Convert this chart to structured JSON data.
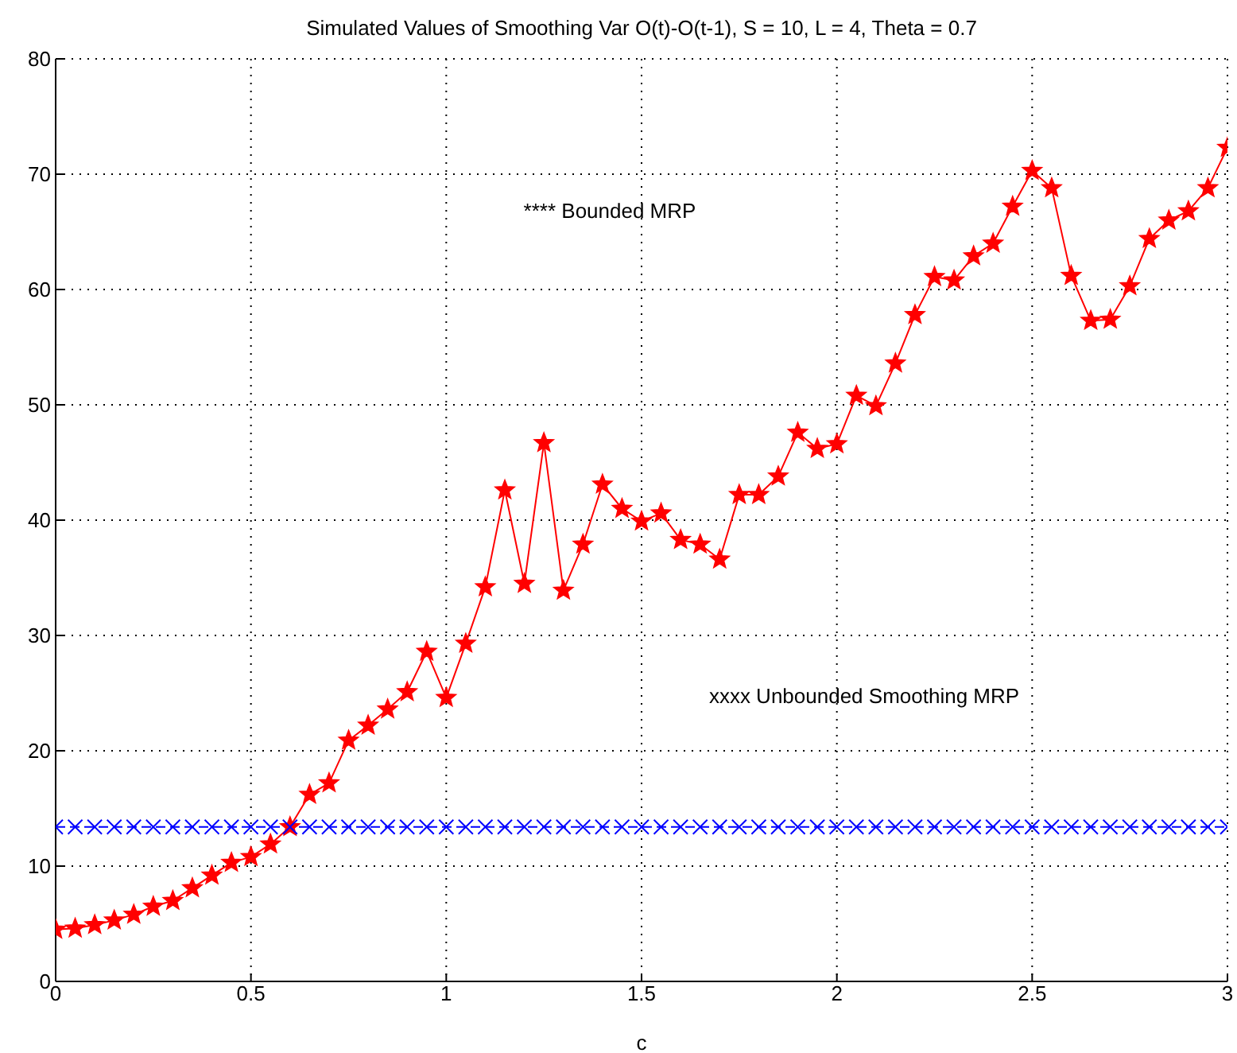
{
  "chart_data": {
    "type": "line",
    "title": "Simulated Values of Smoothing Var O(t)-O(t-1), S = 10, L = 4, Theta = 0.7",
    "xlabel": "c",
    "x": [
      0,
      0.05,
      0.1,
      0.15,
      0.2,
      0.25,
      0.3,
      0.35,
      0.4,
      0.45,
      0.5,
      0.55,
      0.6,
      0.65,
      0.7,
      0.75,
      0.8,
      0.85,
      0.9,
      0.95,
      1,
      1.05,
      1.1,
      1.15,
      1.2,
      1.25,
      1.3,
      1.35,
      1.4,
      1.45,
      1.5,
      1.55,
      1.6,
      1.65,
      1.7,
      1.75,
      1.8,
      1.85,
      1.9,
      1.95,
      2,
      2.05,
      2.1,
      2.15,
      2.2,
      2.25,
      2.3,
      2.35,
      2.4,
      2.45,
      2.5,
      2.55,
      2.6,
      2.65,
      2.7,
      2.75,
      2.8,
      2.85,
      2.9,
      2.95,
      3
    ],
    "series": [
      {
        "color": "#ff0000",
        "marker": "star",
        "line_style": "solid",
        "values": [
          4.5,
          4.6,
          4.9,
          5.3,
          5.8,
          6.5,
          7.0,
          8.1,
          9.2,
          10.3,
          10.8,
          11.9,
          13.4,
          16.2,
          17.2,
          20.9,
          22.2,
          23.6,
          25.1,
          28.6,
          24.6,
          29.3,
          34.2,
          42.6,
          34.5,
          46.7,
          33.9,
          37.9,
          43.1,
          41.0,
          39.9,
          40.6,
          38.3,
          37.9,
          36.6,
          42.2,
          42.2,
          43.8,
          47.6,
          46.2,
          46.6,
          50.8,
          49.9,
          53.6,
          57.8,
          61.1,
          60.8,
          62.9,
          64.0,
          67.2,
          70.3,
          68.8,
          61.2,
          57.3,
          57.4,
          60.3,
          64.4,
          66.0,
          66.8,
          68.8,
          72.3
        ]
      },
      {
        "color": "#0000ff",
        "marker": "cross",
        "line_style": "dashed",
        "values": [
          13.4,
          13.4,
          13.4,
          13.4,
          13.4,
          13.4,
          13.4,
          13.4,
          13.4,
          13.4,
          13.4,
          13.4,
          13.4,
          13.4,
          13.4,
          13.4,
          13.4,
          13.4,
          13.4,
          13.4,
          13.4,
          13.4,
          13.4,
          13.4,
          13.4,
          13.4,
          13.4,
          13.4,
          13.4,
          13.4,
          13.4,
          13.4,
          13.4,
          13.4,
          13.4,
          13.4,
          13.4,
          13.4,
          13.4,
          13.4,
          13.4,
          13.4,
          13.4,
          13.4,
          13.4,
          13.4,
          13.4,
          13.4,
          13.4,
          13.4,
          13.4,
          13.4,
          13.4,
          13.4,
          13.4,
          13.4,
          13.4,
          13.4,
          13.4,
          13.4,
          13.4
        ]
      }
    ],
    "annotations": [
      "**** Bounded MRP",
      "xxxx Unbounded Smoothing MRP"
    ],
    "xlim": [
      0,
      3
    ],
    "xticks": [
      0,
      0.5,
      1,
      1.5,
      2,
      2.5,
      3
    ],
    "ylim": [
      0,
      80
    ],
    "yticks": [
      0,
      10,
      20,
      30,
      40,
      50,
      60,
      70,
      80
    ],
    "grid": true
  }
}
